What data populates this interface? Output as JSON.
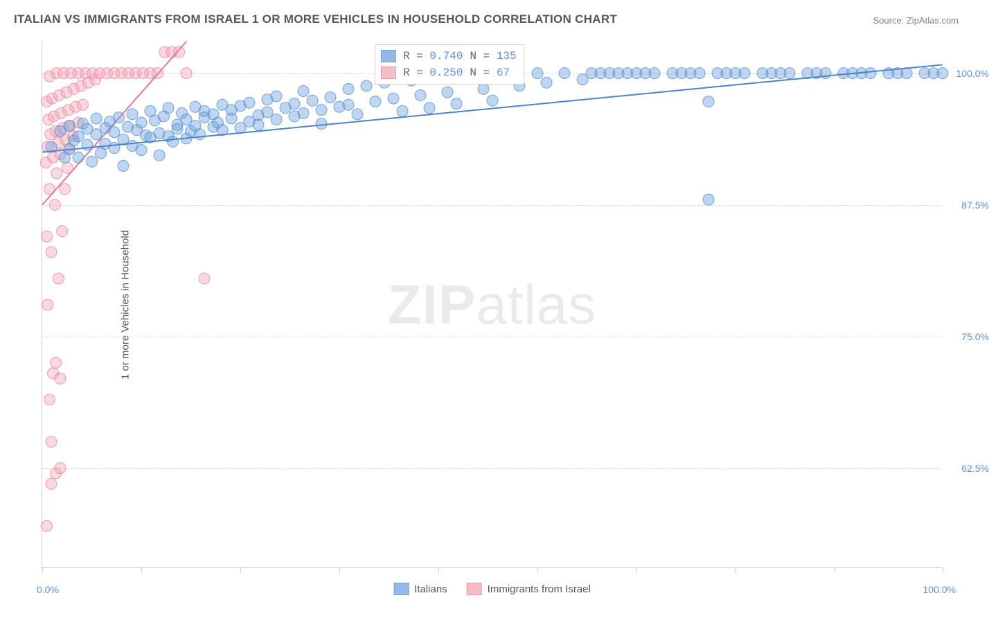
{
  "title": "ITALIAN VS IMMIGRANTS FROM ISRAEL 1 OR MORE VEHICLES IN HOUSEHOLD CORRELATION CHART",
  "source": "Source: ZipAtlas.com",
  "watermark": "ZIPatlas",
  "ylabel": "1 or more Vehicles in Household",
  "chart": {
    "type": "scatter",
    "xlim": [
      0,
      100
    ],
    "ylim": [
      53,
      103
    ],
    "yticks": [
      62.5,
      75.0,
      87.5,
      100.0
    ],
    "ytick_labels": [
      "62.5%",
      "75.0%",
      "87.5%",
      "100.0%"
    ],
    "xticks": [
      0,
      11,
      22,
      33,
      44,
      55,
      66,
      77,
      88,
      100
    ],
    "x_axis_labels": {
      "min": "0.0%",
      "max": "100.0%"
    },
    "background_color": "#ffffff",
    "grid_color": "#d8d8d8",
    "marker_radius": 8,
    "marker_opacity": 0.45,
    "line_width": 2,
    "series": [
      {
        "name": "Italians",
        "color": "#6fa3e0",
        "stroke": "#4c84c7",
        "R": "0.740",
        "N": "135",
        "regression": {
          "x1": 0,
          "y1": 92.5,
          "x2": 100,
          "y2": 100.8
        },
        "points": [
          [
            1,
            93
          ],
          [
            2,
            94.5
          ],
          [
            2.5,
            92
          ],
          [
            3,
            95
          ],
          [
            3,
            92.8
          ],
          [
            3.5,
            93.6
          ],
          [
            4,
            94
          ],
          [
            4,
            92
          ],
          [
            4.5,
            95.2
          ],
          [
            5,
            93.2
          ],
          [
            5,
            94.7
          ],
          [
            5.5,
            91.6
          ],
          [
            6,
            94.2
          ],
          [
            6,
            95.7
          ],
          [
            6.5,
            92.4
          ],
          [
            7,
            94.8
          ],
          [
            7,
            93.3
          ],
          [
            7.5,
            95.4
          ],
          [
            8,
            92.9
          ],
          [
            8,
            94.4
          ],
          [
            8.5,
            95.8
          ],
          [
            9,
            93.7
          ],
          [
            9,
            91.2
          ],
          [
            9.5,
            94.9
          ],
          [
            10,
            96.1
          ],
          [
            10,
            93.1
          ],
          [
            10.5,
            94.6
          ],
          [
            11,
            95.3
          ],
          [
            11,
            92.7
          ],
          [
            11.5,
            94.1
          ],
          [
            12,
            96.4
          ],
          [
            12,
            93.9
          ],
          [
            12.5,
            95.5
          ],
          [
            13,
            94.3
          ],
          [
            13,
            92.2
          ],
          [
            13.5,
            95.9
          ],
          [
            14,
            94
          ],
          [
            14,
            96.7
          ],
          [
            14.5,
            93.5
          ],
          [
            15,
            95.1
          ],
          [
            15,
            94.7
          ],
          [
            15.5,
            96.2
          ],
          [
            16,
            93.8
          ],
          [
            16,
            95.6
          ],
          [
            16.5,
            94.5
          ],
          [
            17,
            96.8
          ],
          [
            17,
            95
          ],
          [
            17.5,
            94.2
          ],
          [
            18,
            96.4
          ],
          [
            18,
            95.8
          ],
          [
            19,
            94.9
          ],
          [
            19,
            96.1
          ],
          [
            19.5,
            95.3
          ],
          [
            20,
            97
          ],
          [
            20,
            94.6
          ],
          [
            21,
            96.5
          ],
          [
            21,
            95.7
          ],
          [
            22,
            94.8
          ],
          [
            22,
            96.9
          ],
          [
            23,
            95.4
          ],
          [
            23,
            97.2
          ],
          [
            24,
            96
          ],
          [
            24,
            95.1
          ],
          [
            25,
            97.5
          ],
          [
            25,
            96.3
          ],
          [
            26,
            95.6
          ],
          [
            26,
            97.8
          ],
          [
            27,
            96.7
          ],
          [
            28,
            95.9
          ],
          [
            28,
            97.1
          ],
          [
            29,
            96.2
          ],
          [
            29,
            98.3
          ],
          [
            30,
            97.4
          ],
          [
            31,
            96.5
          ],
          [
            31,
            95.2
          ],
          [
            32,
            97.7
          ],
          [
            33,
            96.8
          ],
          [
            34,
            98.5
          ],
          [
            34,
            97
          ],
          [
            35,
            96.1
          ],
          [
            36,
            98.8
          ],
          [
            37,
            97.3
          ],
          [
            38,
            99.1
          ],
          [
            39,
            97.6
          ],
          [
            40,
            96.4
          ],
          [
            41,
            99.3
          ],
          [
            42,
            97.9
          ],
          [
            43,
            96.7
          ],
          [
            44,
            99.6
          ],
          [
            45,
            98.2
          ],
          [
            46,
            97.1
          ],
          [
            48,
            99.8
          ],
          [
            49,
            98.5
          ],
          [
            50,
            97.4
          ],
          [
            52,
            100
          ],
          [
            53,
            98.8
          ],
          [
            55,
            100
          ],
          [
            56,
            99.1
          ],
          [
            58,
            100
          ],
          [
            60,
            99.4
          ],
          [
            61,
            100
          ],
          [
            62,
            100
          ],
          [
            63,
            100
          ],
          [
            64,
            100
          ],
          [
            65,
            100
          ],
          [
            66,
            100
          ],
          [
            67,
            100
          ],
          [
            68,
            100
          ],
          [
            70,
            100
          ],
          [
            71,
            100
          ],
          [
            72,
            100
          ],
          [
            73,
            100
          ],
          [
            74,
            88
          ],
          [
            75,
            100
          ],
          [
            76,
            100
          ],
          [
            77,
            100
          ],
          [
            78,
            100
          ],
          [
            80,
            100
          ],
          [
            81,
            100
          ],
          [
            82,
            100
          ],
          [
            83,
            100
          ],
          [
            85,
            100
          ],
          [
            86,
            100
          ],
          [
            87,
            100
          ],
          [
            89,
            100
          ],
          [
            90,
            100
          ],
          [
            91,
            100
          ],
          [
            92,
            100
          ],
          [
            94,
            100
          ],
          [
            95,
            100
          ],
          [
            96,
            100
          ],
          [
            98,
            100
          ],
          [
            99,
            100
          ],
          [
            100,
            100
          ],
          [
            74,
            97.3
          ]
        ]
      },
      {
        "name": "Immigrants from Israel",
        "color": "#f4a8b8",
        "stroke": "#e77995",
        "R": "0.250",
        "N": " 67",
        "regression": {
          "x1": 0,
          "y1": 87.5,
          "x2": 16,
          "y2": 103
        },
        "points": [
          [
            0.5,
            57
          ],
          [
            1,
            61
          ],
          [
            1.5,
            62
          ],
          [
            1,
            65
          ],
          [
            2,
            62.5
          ],
          [
            0.8,
            69
          ],
          [
            1.2,
            71.5
          ],
          [
            1.5,
            72.5
          ],
          [
            2,
            71
          ],
          [
            0.6,
            78
          ],
          [
            1.8,
            80.5
          ],
          [
            2.2,
            85
          ],
          [
            1,
            83
          ],
          [
            0.5,
            84.5
          ],
          [
            1.4,
            87.5
          ],
          [
            2.5,
            89
          ],
          [
            0.8,
            89
          ],
          [
            1.6,
            90.5
          ],
          [
            2.8,
            91
          ],
          [
            0.4,
            91.5
          ],
          [
            1.2,
            92
          ],
          [
            2,
            92.3
          ],
          [
            3,
            92.8
          ],
          [
            0.6,
            93
          ],
          [
            1.8,
            93.4
          ],
          [
            2.6,
            93.7
          ],
          [
            3.4,
            94
          ],
          [
            0.9,
            94.2
          ],
          [
            1.5,
            94.5
          ],
          [
            2.3,
            94.8
          ],
          [
            3.1,
            95
          ],
          [
            4,
            95.3
          ],
          [
            0.7,
            95.6
          ],
          [
            1.3,
            95.9
          ],
          [
            2.1,
            96.2
          ],
          [
            2.9,
            96.5
          ],
          [
            3.7,
            96.8
          ],
          [
            4.5,
            97
          ],
          [
            0.5,
            97.3
          ],
          [
            1.1,
            97.6
          ],
          [
            1.9,
            97.9
          ],
          [
            2.7,
            98.2
          ],
          [
            3.5,
            98.5
          ],
          [
            4.3,
            98.8
          ],
          [
            5.1,
            99.1
          ],
          [
            5.9,
            99.4
          ],
          [
            0.8,
            99.7
          ],
          [
            1.6,
            100
          ],
          [
            2.4,
            100
          ],
          [
            3.2,
            100
          ],
          [
            4,
            100
          ],
          [
            4.8,
            100
          ],
          [
            5.6,
            100
          ],
          [
            6.4,
            100
          ],
          [
            7.2,
            100
          ],
          [
            8,
            100
          ],
          [
            8.8,
            100
          ],
          [
            9.6,
            100
          ],
          [
            10.4,
            100
          ],
          [
            11.2,
            100
          ],
          [
            12,
            100
          ],
          [
            12.8,
            100
          ],
          [
            13.6,
            102
          ],
          [
            14.4,
            102
          ],
          [
            15.2,
            102
          ],
          [
            18,
            80.5
          ],
          [
            16,
            100
          ]
        ]
      }
    ]
  },
  "legend": {
    "series1_label": "Italians",
    "series2_label": "Immigrants from Israel"
  }
}
